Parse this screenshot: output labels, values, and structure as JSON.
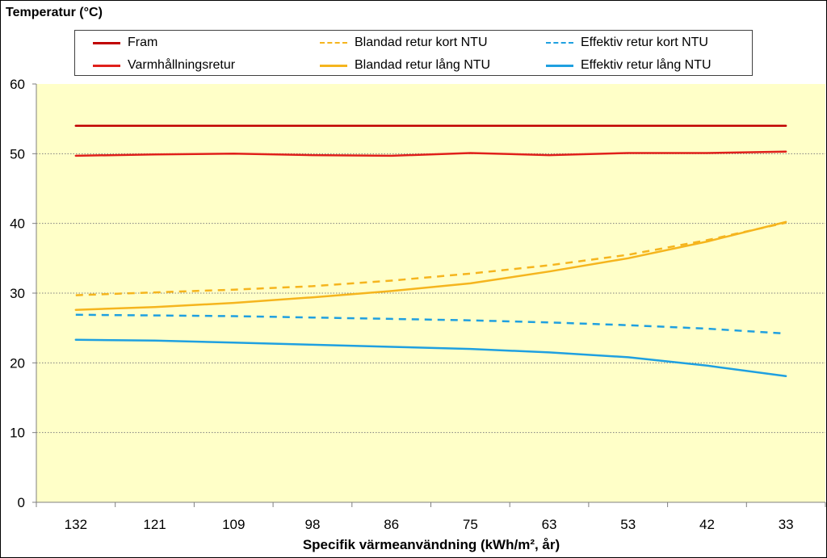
{
  "chart_data": {
    "type": "line",
    "ylabel": "Temperatur (°C)",
    "xlabel": "Specifik värmeanvändning (kWh/m², år)",
    "categories": [
      "132",
      "121",
      "109",
      "98",
      "86",
      "75",
      "63",
      "53",
      "42",
      "33"
    ],
    "ylim": [
      0,
      60
    ],
    "yticks": [
      0,
      10,
      20,
      30,
      40,
      50,
      60
    ],
    "grid": true,
    "plot_background": "#FFFFC8",
    "legend_position": "top",
    "series": [
      {
        "name": "Fram",
        "color": "#C00000",
        "style": "solid",
        "values": [
          54.0,
          54.0,
          54.0,
          54.0,
          54.0,
          54.0,
          54.0,
          54.0,
          54.0,
          54.0
        ]
      },
      {
        "name": "Blandad retur kort NTU",
        "color": "#F5B51E",
        "style": "dashed",
        "values": [
          29.7,
          30.1,
          30.5,
          31.0,
          31.8,
          32.8,
          34.0,
          35.5,
          37.6,
          40.1
        ]
      },
      {
        "name": "Effektiv retur kort NTU",
        "color": "#1FA0E0",
        "style": "dashed",
        "values": [
          26.9,
          26.8,
          26.7,
          26.5,
          26.3,
          26.1,
          25.8,
          25.4,
          24.9,
          24.2
        ]
      },
      {
        "name": "Varmhållningsretur",
        "color": "#E0201B",
        "style": "solid",
        "values": [
          49.7,
          49.9,
          50.0,
          49.8,
          49.7,
          50.1,
          49.8,
          50.1,
          50.1,
          50.3
        ]
      },
      {
        "name": "Blandad retur lång NTU",
        "color": "#F5B51E",
        "style": "solid",
        "values": [
          27.6,
          28.0,
          28.6,
          29.4,
          30.3,
          31.4,
          33.1,
          35.0,
          37.4,
          40.2
        ]
      },
      {
        "name": "Effektiv retur lång NTU",
        "color": "#1FA0E0",
        "style": "solid",
        "values": [
          23.3,
          23.2,
          22.9,
          22.6,
          22.3,
          22.0,
          21.5,
          20.8,
          19.6,
          18.1
        ]
      }
    ]
  }
}
